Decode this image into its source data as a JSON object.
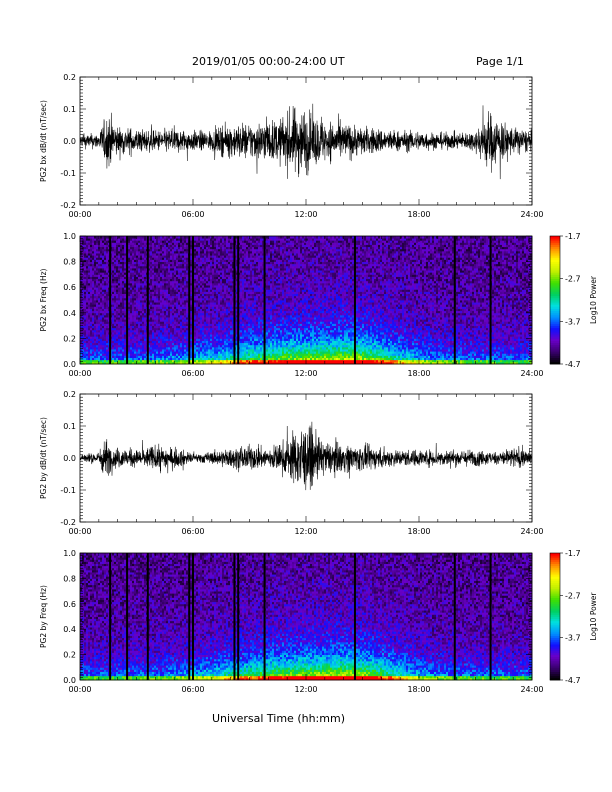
{
  "header": {
    "title": "2019/01/05  00:00-24:00 UT",
    "page": "Page 1/1"
  },
  "xlabel": "Universal Time (hh:mm)",
  "time_ticks": [
    "00:00",
    "06:00",
    "12:00",
    "18:00",
    "24:00"
  ],
  "colorbar": {
    "label": "Log10 Power",
    "ticks": [
      "-1.7",
      "-2.7",
      "-3.7",
      "-4.7"
    ],
    "colors": [
      "#000000",
      "#3a0070",
      "#6a00c8",
      "#1010ff",
      "#0090ff",
      "#00e0e0",
      "#00d060",
      "#40e000",
      "#c0f000",
      "#ffff00",
      "#ff9000",
      "#ff0000"
    ]
  },
  "chart_data": [
    {
      "type": "line",
      "ylabel": "PG2 bx dB/dt (nT/sec)",
      "xlim": [
        0,
        24
      ],
      "ylim": [
        -0.2,
        0.2
      ],
      "yticks": [
        "0.2",
        "0.1",
        "0.0",
        "-0.1",
        "-0.2"
      ],
      "xticks": [
        "00:00",
        "06:00",
        "12:00",
        "18:00",
        "24:00"
      ],
      "envelope": {
        "x_hours": [
          0,
          1,
          1.5,
          2,
          3,
          4,
          5,
          6,
          7,
          8,
          9,
          10,
          10.5,
          11,
          11.5,
          12,
          12.5,
          13,
          14,
          15,
          16,
          17,
          18,
          19,
          20,
          21,
          21.7,
          22.5,
          23,
          24
        ],
        "amplitude": [
          0.03,
          0.04,
          0.14,
          0.07,
          0.06,
          0.05,
          0.06,
          0.05,
          0.05,
          0.08,
          0.09,
          0.1,
          0.1,
          0.14,
          0.17,
          0.16,
          0.12,
          0.1,
          0.09,
          0.07,
          0.06,
          0.05,
          0.05,
          0.04,
          0.04,
          0.05,
          0.15,
          0.09,
          0.07,
          0.05
        ]
      }
    },
    {
      "type": "heatmap",
      "ylabel": "PG2 bx Freq (Hz)",
      "xlim": [
        0,
        24
      ],
      "ylim": [
        0,
        1.0
      ],
      "yticks": [
        "1.0",
        "0.8",
        "0.6",
        "0.4",
        "0.2",
        "0.0"
      ],
      "xticks": [
        "00:00",
        "06:00",
        "12:00",
        "18:00",
        "24:00"
      ],
      "zlim": [
        -4.7,
        -1.7
      ],
      "gaps_hours": [
        1.6,
        2.5,
        3.6,
        5.8,
        6.0,
        8.2,
        8.4,
        9.8,
        14.6,
        19.9,
        21.8
      ]
    },
    {
      "type": "line",
      "ylabel": "PG2 by dB/dt (nT/sec)",
      "xlim": [
        0,
        24
      ],
      "ylim": [
        -0.2,
        0.2
      ],
      "yticks": [
        "0.2",
        "0.1",
        "0.0",
        "-0.1",
        "-0.2"
      ],
      "xticks": [
        "00:00",
        "06:00",
        "12:00",
        "18:00",
        "24:00"
      ],
      "envelope": {
        "x_hours": [
          0,
          1,
          1.3,
          1.8,
          2.5,
          3,
          4,
          5,
          5.8,
          6,
          7,
          8,
          9,
          10,
          11,
          11.5,
          12,
          12.5,
          13,
          14,
          15,
          16,
          17,
          18,
          19,
          20,
          21,
          22,
          23,
          24
        ],
        "amplitude": [
          0.02,
          0.03,
          0.1,
          0.05,
          0.05,
          0.04,
          0.06,
          0.05,
          0.03,
          0.02,
          0.03,
          0.05,
          0.06,
          0.05,
          0.09,
          0.14,
          0.16,
          0.12,
          0.08,
          0.07,
          0.06,
          0.05,
          0.04,
          0.04,
          0.04,
          0.04,
          0.04,
          0.03,
          0.05,
          0.04
        ]
      }
    },
    {
      "type": "heatmap",
      "ylabel": "PG2 by Freq (Hz)",
      "xlim": [
        0,
        24
      ],
      "ylim": [
        0,
        1.0
      ],
      "yticks": [
        "1.0",
        "0.8",
        "0.6",
        "0.4",
        "0.2",
        "0.0"
      ],
      "xticks": [
        "00:00",
        "06:00",
        "12:00",
        "18:00",
        "24:00"
      ],
      "zlim": [
        -4.7,
        -1.7
      ],
      "gaps_hours": [
        1.6,
        2.5,
        3.6,
        5.8,
        6.0,
        8.2,
        8.4,
        9.8,
        14.6,
        19.9,
        21.8
      ]
    }
  ]
}
